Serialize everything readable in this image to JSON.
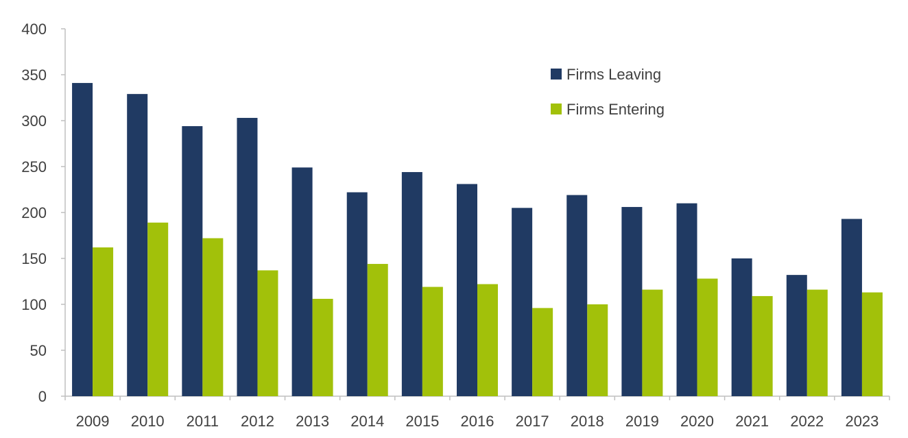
{
  "chart_data": {
    "type": "bar",
    "title": "",
    "xlabel": "",
    "ylabel": "",
    "ylim": [
      0,
      400
    ],
    "yticks": [
      0,
      50,
      100,
      150,
      200,
      250,
      300,
      350,
      400
    ],
    "categories": [
      "2009",
      "2010",
      "2011",
      "2012",
      "2013",
      "2014",
      "2015",
      "2016",
      "2017",
      "2018",
      "2019",
      "2020",
      "2021",
      "2022",
      "2023"
    ],
    "series": [
      {
        "name": "Firms Leaving",
        "color": "#203a63",
        "values": [
          341,
          329,
          294,
          303,
          249,
          222,
          244,
          231,
          205,
          219,
          206,
          210,
          150,
          132,
          193
        ]
      },
      {
        "name": "Firms Entering",
        "color": "#a2c10a",
        "values": [
          162,
          189,
          172,
          137,
          106,
          144,
          119,
          122,
          96,
          100,
          116,
          128,
          109,
          116,
          113
        ]
      }
    ],
    "legend_position": "top-right",
    "grid": false
  }
}
